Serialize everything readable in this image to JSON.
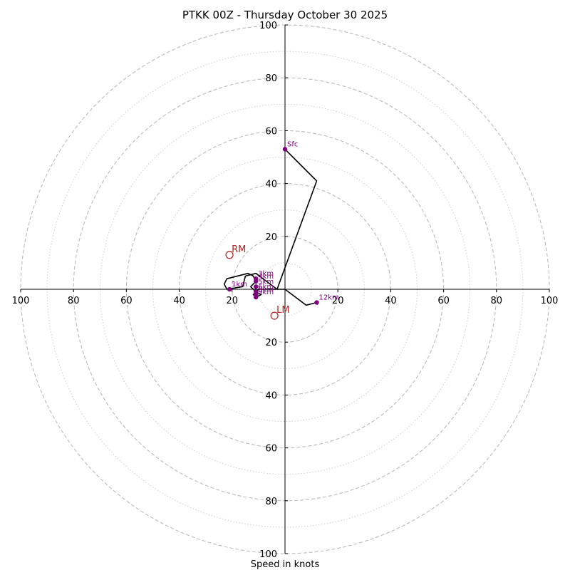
{
  "chart_data": {
    "type": "hodograph",
    "title": "PTKK 00Z - Thursday October 30 2025",
    "xlabel": "Speed in knots",
    "units": "knots",
    "range": [
      -100,
      100
    ],
    "rings_dashed": [
      20,
      40,
      60,
      80,
      100
    ],
    "rings_dotted": [
      10,
      30,
      50,
      70,
      90
    ],
    "tick_values": [
      20,
      40,
      60,
      80,
      100
    ],
    "colors": {
      "trace": "#000000",
      "height_marker": "#800080",
      "storm_motion": "#b22222",
      "grid": "#bbbbbb"
    },
    "trace": [
      {
        "u": 0,
        "v": 53
      },
      {
        "u": 12,
        "v": 41
      },
      {
        "u": -3,
        "v": 0
      },
      {
        "u": -11,
        "v": 6
      },
      {
        "u": -15,
        "v": 5
      },
      {
        "u": -16,
        "v": 1
      },
      {
        "u": -22,
        "v": 0
      },
      {
        "u": -23,
        "v": 2
      },
      {
        "u": -22,
        "v": 4
      },
      {
        "u": -14,
        "v": 6
      },
      {
        "u": -12,
        "v": 5
      },
      {
        "u": -11,
        "v": 3
      },
      {
        "u": -13,
        "v": 1
      },
      {
        "u": -11,
        "v": -1
      },
      {
        "u": -9,
        "v": -2
      },
      {
        "u": -11,
        "v": -3
      },
      {
        "u": -12,
        "v": -2
      },
      {
        "u": -10,
        "v": 0
      },
      {
        "u": -5,
        "v": 0
      },
      {
        "u": 0,
        "v": 0
      },
      {
        "u": 8,
        "v": -6
      },
      {
        "u": 12,
        "v": -5
      }
    ],
    "height_markers": [
      {
        "label": "Sfc",
        "u": 0,
        "v": 53
      },
      {
        "label": "1km",
        "u": -21,
        "v": 0
      },
      {
        "label": "3km",
        "u": -11,
        "v": 4
      },
      {
        "label": "4km",
        "u": -11,
        "v": 3
      },
      {
        "label": "5km",
        "u": -11,
        "v": 1
      },
      {
        "label": "6km",
        "u": -11,
        "v": -1
      },
      {
        "label": "8km",
        "u": -11,
        "v": -2
      },
      {
        "label": "9km",
        "u": -11,
        "v": -3
      },
      {
        "label": "12km",
        "u": 12,
        "v": -5
      }
    ],
    "storm_motions": [
      {
        "label": "RM",
        "u": -21,
        "v": 13
      },
      {
        "label": "LM",
        "u": -4,
        "v": -10
      }
    ]
  }
}
